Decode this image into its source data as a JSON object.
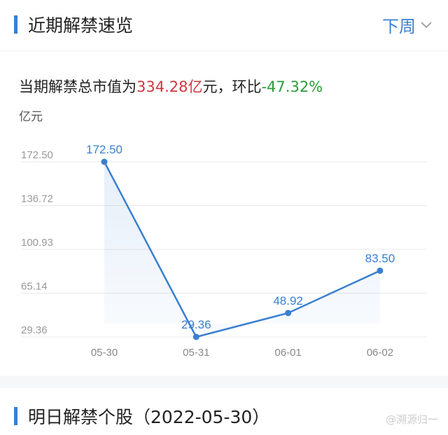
{
  "header": {
    "title": "近期解禁速览",
    "period": "下周",
    "chevron_icon": "chevron-down-icon"
  },
  "summary": {
    "prefix": "当期解禁总市值为",
    "total": "334.28亿",
    "mid": "元，环比",
    "change": "-47.32%"
  },
  "colors": {
    "accent": "#3a7fd0",
    "up": "#d2353d",
    "down": "#2e9a3a"
  },
  "chart_data": {
    "type": "line",
    "unit_label": "亿元",
    "categories": [
      "05-30",
      "05-31",
      "06-01",
      "06-02"
    ],
    "values": [
      172.5,
      29.36,
      48.92,
      83.5
    ],
    "data_labels": [
      "172.50",
      "29.36",
      "48.92",
      "83.50"
    ],
    "y_ticks": [
      "172.50",
      "136.72",
      "100.93",
      "65.14",
      "29.36"
    ],
    "ylim": [
      29.36,
      172.5
    ],
    "grid": true,
    "area_fill": true,
    "color": "#3a7fd0"
  },
  "section2": {
    "title": "明日解禁个股（2022-05-30）"
  },
  "watermark": "@溯源归一"
}
